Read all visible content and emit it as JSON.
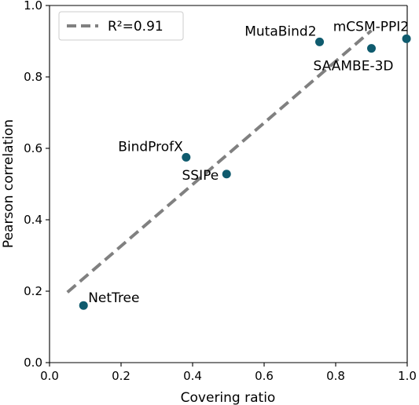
{
  "chart_data": {
    "type": "scatter",
    "xlabel": "Covering ratio",
    "ylabel": "Pearson correlation",
    "xlim": [
      0.0,
      1.0
    ],
    "ylim": [
      0.0,
      1.0
    ],
    "xticks": [
      "0.0",
      "0.2",
      "0.4",
      "0.6",
      "0.8",
      "1.0"
    ],
    "yticks": [
      "0.0",
      "0.2",
      "0.4",
      "0.6",
      "0.8",
      "1.0"
    ],
    "grid": false,
    "legend": {
      "position": "top-left",
      "entries": [
        "R²=0.91"
      ]
    },
    "points": [
      {
        "label": "NetTree",
        "x": 0.095,
        "y": 0.16
      },
      {
        "label": "BindProfX",
        "x": 0.382,
        "y": 0.575
      },
      {
        "label": "SSIPe",
        "x": 0.495,
        "y": 0.528
      },
      {
        "label": "MutaBind2",
        "x": 0.755,
        "y": 0.898
      },
      {
        "label": "SAAMBE-3D",
        "x": 0.9,
        "y": 0.88
      },
      {
        "label": "mCSM-PPI2",
        "x": 0.998,
        "y": 0.907
      }
    ],
    "fit_line": {
      "x": [
        0.05,
        0.9
      ],
      "y": [
        0.197,
        0.93
      ]
    },
    "colors": {
      "points": "#0f5b6e",
      "fit_line": "#808080"
    }
  }
}
